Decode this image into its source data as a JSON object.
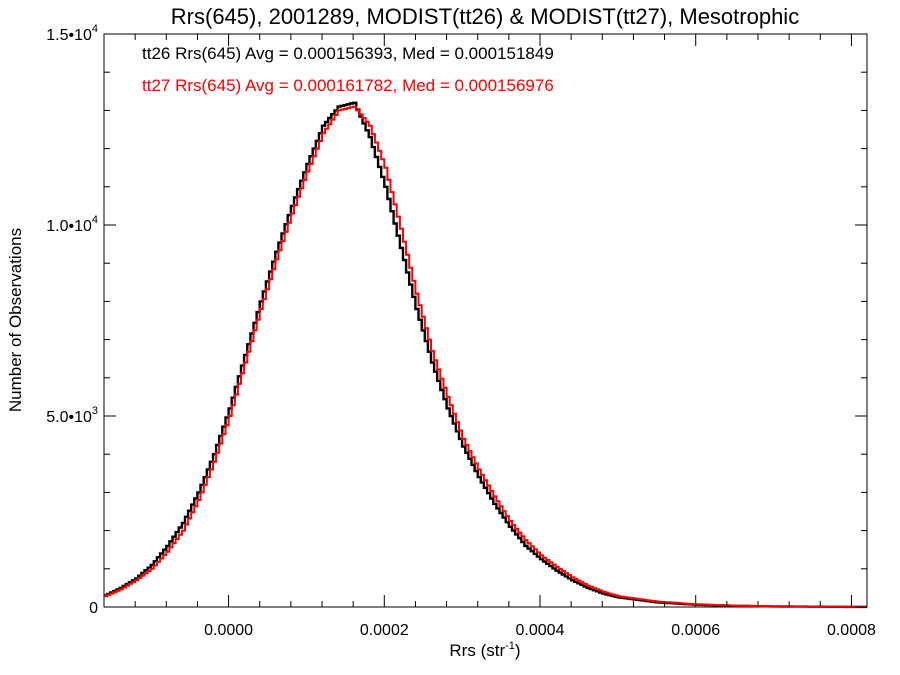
{
  "chart_data": {
    "type": "line",
    "style": "histogram-step",
    "title": "Rrs(645), 2001289, MODIST(tt26) & MODIST(tt27), Mesotrophic",
    "xlabel": "Rrs (str",
    "xlabel_sup": "-1",
    "xlabel_suffix": ")",
    "ylabel": "Number of Observations",
    "xlim": [
      -0.00016,
      0.00082
    ],
    "ylim": [
      0,
      15000
    ],
    "grid": false,
    "legend_placement": "top-left",
    "x_ticks": [
      {
        "value": 0.0,
        "label": "0.0000"
      },
      {
        "value": 0.0002,
        "label": "0.0002"
      },
      {
        "value": 0.0004,
        "label": "0.0004"
      },
      {
        "value": 0.0006,
        "label": "0.0006"
      },
      {
        "value": 0.0008,
        "label": "0.0008"
      }
    ],
    "y_ticks": [
      {
        "value": 0,
        "mant": "0",
        "exp": ""
      },
      {
        "value": 5000,
        "mant": "5.0•10",
        "exp": "3"
      },
      {
        "value": 10000,
        "mant": "1.0•10",
        "exp": "4"
      },
      {
        "value": 15000,
        "mant": "1.5•10",
        "exp": "4"
      }
    ],
    "series": [
      {
        "name": "tt26",
        "legend": "tt26 Rrs(645) Avg = 0.000156393, Med = 0.000151849",
        "color": "#000000",
        "x": [
          -0.00016,
          -0.00014,
          -0.00012,
          -0.0001,
          -8e-05,
          -6e-05,
          -4e-05,
          -2e-05,
          0.0,
          2e-05,
          4e-05,
          6e-05,
          8e-05,
          0.0001,
          0.00012,
          0.00014,
          0.00016,
          0.00018,
          0.0002,
          0.00022,
          0.00024,
          0.00026,
          0.00028,
          0.0003,
          0.00032,
          0.00034,
          0.00036,
          0.00038,
          0.0004,
          0.00042,
          0.00044,
          0.00046,
          0.00048,
          0.0005,
          0.00055,
          0.0006,
          0.00065,
          0.0007,
          0.00075,
          0.0008,
          0.00082
        ],
        "values": [
          300,
          500,
          750,
          1100,
          1600,
          2200,
          3000,
          4000,
          5200,
          6600,
          8000,
          9300,
          10500,
          11600,
          12600,
          13100,
          13200,
          12300,
          11000,
          9400,
          7800,
          6400,
          5200,
          4200,
          3400,
          2700,
          2100,
          1600,
          1250,
          950,
          700,
          500,
          350,
          250,
          120,
          60,
          30,
          15,
          8,
          3,
          2
        ]
      },
      {
        "name": "tt27",
        "legend": "tt27 Rrs(645) Avg = 0.000161782, Med = 0.000156976",
        "color": "#ff0000",
        "x": [
          -0.00016,
          -0.00014,
          -0.00012,
          -0.0001,
          -8e-05,
          -6e-05,
          -4e-05,
          -2e-05,
          0.0,
          2e-05,
          4e-05,
          6e-05,
          8e-05,
          0.0001,
          0.00012,
          0.00014,
          0.00016,
          0.00018,
          0.0002,
          0.00022,
          0.00024,
          0.00026,
          0.00028,
          0.0003,
          0.00032,
          0.00034,
          0.00036,
          0.00038,
          0.0004,
          0.00042,
          0.00044,
          0.00046,
          0.00048,
          0.0005,
          0.00055,
          0.0006,
          0.00065,
          0.0007,
          0.00075,
          0.0008,
          0.00082
        ],
        "values": [
          280,
          460,
          700,
          1000,
          1450,
          2000,
          2800,
          3800,
          5000,
          6400,
          7800,
          9100,
          10300,
          11400,
          12400,
          13000,
          13100,
          12600,
          11500,
          9900,
          8200,
          6700,
          5500,
          4400,
          3600,
          2900,
          2250,
          1750,
          1350,
          1050,
          780,
          560,
          400,
          280,
          140,
          70,
          35,
          18,
          9,
          4,
          2
        ]
      }
    ]
  }
}
